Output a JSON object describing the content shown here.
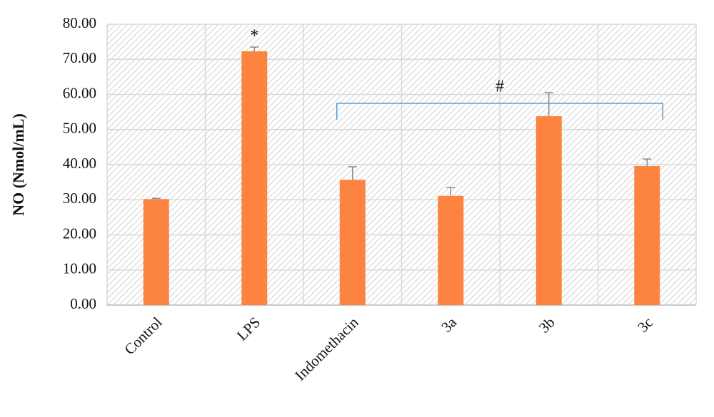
{
  "chart_data": {
    "type": "bar",
    "y_label": "NO (Nmol/mL)",
    "categories": [
      "Control",
      "LPS",
      "Indomethacin",
      "3a",
      "3b",
      "3c"
    ],
    "values": [
      30.2,
      72.3,
      35.7,
      31.1,
      53.8,
      39.6
    ],
    "errors": [
      0.2,
      1.2,
      3.7,
      2.4,
      6.7,
      2.0
    ],
    "color": "#fd8440",
    "error_color": "#8c8c8c",
    "ylim": [
      0,
      80
    ],
    "yticks": [
      {
        "value": 0,
        "label": "0.00"
      },
      {
        "value": 10,
        "label": "10.00"
      },
      {
        "value": 20,
        "label": "20.00"
      },
      {
        "value": 30,
        "label": "30.00"
      },
      {
        "value": 40,
        "label": "40.00"
      },
      {
        "value": 50,
        "label": "50.00"
      },
      {
        "value": 60,
        "label": "60.00"
      },
      {
        "value": 70,
        "label": "70.00"
      },
      {
        "value": 80,
        "label": "80.00"
      }
    ],
    "grid": true,
    "annotations": [
      {
        "text": "*",
        "category": "LPS"
      },
      {
        "text": "#",
        "span": [
          "Indomethacin",
          "3c"
        ],
        "color": "#5b9bd5"
      }
    ]
  }
}
